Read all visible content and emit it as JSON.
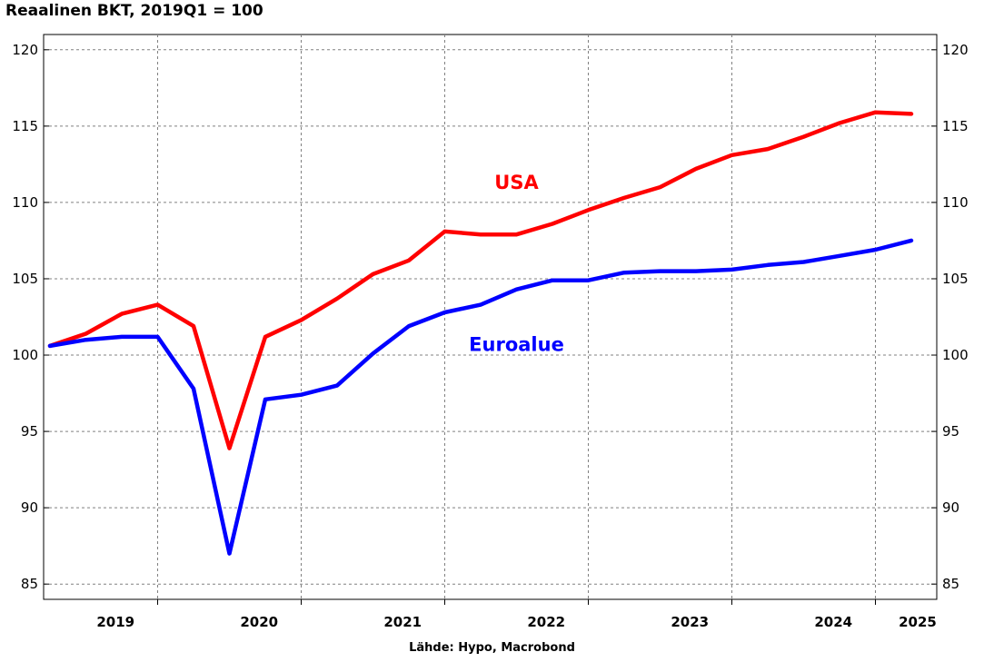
{
  "chart_data": {
    "type": "line",
    "title": "Reaalinen BKT, 2019Q1 = 100",
    "x": [
      "2019Q1",
      "2019Q2",
      "2019Q3",
      "2019Q4",
      "2020Q1",
      "2020Q2",
      "2020Q3",
      "2020Q4",
      "2021Q1",
      "2021Q2",
      "2021Q3",
      "2021Q4",
      "2022Q1",
      "2022Q2",
      "2022Q3",
      "2022Q4",
      "2023Q1",
      "2023Q2",
      "2023Q3",
      "2023Q4",
      "2024Q1",
      "2024Q2",
      "2024Q3",
      "2024Q4",
      "2025Q1"
    ],
    "x_tick_labels": [
      "2019",
      "2020",
      "2021",
      "2022",
      "2023",
      "2024",
      "2025"
    ],
    "ylim": [
      84,
      121
    ],
    "y_ticks": [
      85,
      90,
      95,
      100,
      105,
      110,
      115,
      120
    ],
    "grid": true,
    "series": [
      {
        "name": "USA",
        "color": "#ff0000",
        "values": [
          100.6,
          101.4,
          102.7,
          103.3,
          101.9,
          93.9,
          101.2,
          102.3,
          103.7,
          105.3,
          106.2,
          108.1,
          107.9,
          107.9,
          108.6,
          109.5,
          110.3,
          111.0,
          112.2,
          113.1,
          113.5,
          114.3,
          115.2,
          115.9,
          115.8
        ]
      },
      {
        "name": "Euroalue",
        "color": "#0000ff",
        "values": [
          100.6,
          101.0,
          101.2,
          101.2,
          97.8,
          87.0,
          97.1,
          97.4,
          98.0,
          100.1,
          101.9,
          102.8,
          103.3,
          104.3,
          104.9,
          104.9,
          105.4,
          105.5,
          105.5,
          105.6,
          105.9,
          106.1,
          106.5,
          106.9,
          107.5
        ]
      }
    ],
    "source": "Lähde: Hypo, Macrobond"
  }
}
